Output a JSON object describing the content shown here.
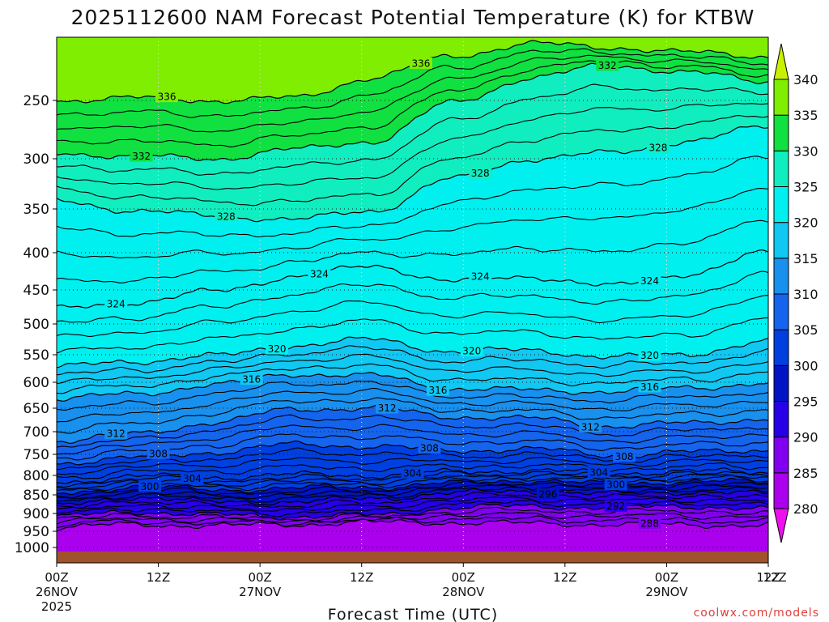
{
  "chart_data": {
    "type": "heatmap",
    "title": "2025112600 NAM Forecast Potential Temperature (K) for KTBW",
    "xlabel": "Forecast Time (UTC)",
    "ylabel": "",
    "credit": "coolwx.com/models",
    "y_ticks": [
      "250",
      "300",
      "350",
      "400",
      "450",
      "500",
      "550",
      "600",
      "650",
      "700",
      "750",
      "800",
      "850",
      "900",
      "950",
      "1000"
    ],
    "y_tick_values": [
      250,
      300,
      350,
      400,
      450,
      500,
      550,
      600,
      650,
      700,
      750,
      800,
      850,
      900,
      950,
      1000
    ],
    "ylim": [
      200,
      1000
    ],
    "x_ticks": [
      {
        "hour": 0,
        "time": "00Z",
        "date": "26NOV",
        "year": "2025"
      },
      {
        "hour": 12,
        "time": "12Z",
        "date": "",
        "year": ""
      },
      {
        "hour": 24,
        "time": "00Z",
        "date": "27NOV",
        "year": ""
      },
      {
        "hour": 36,
        "time": "12Z",
        "date": "",
        "year": ""
      },
      {
        "hour": 48,
        "time": "00Z",
        "date": "28NOV",
        "year": ""
      },
      {
        "hour": 60,
        "time": "12Z",
        "date": "",
        "year": ""
      },
      {
        "hour": 72,
        "time": "00Z",
        "date": "29NOV",
        "year": ""
      },
      {
        "hour": 84,
        "time": "12Z",
        "date": "",
        "year": ""
      }
    ],
    "xlim": [
      0,
      84
    ],
    "colorbar": {
      "levels": [
        280,
        285,
        290,
        295,
        300,
        305,
        310,
        315,
        320,
        325,
        330,
        335,
        340
      ],
      "labels": [
        "280",
        "285",
        "290",
        "295",
        "300",
        "305",
        "310",
        "315",
        "320",
        "325",
        "330",
        "335",
        "340"
      ],
      "colors": [
        "#ee11ee",
        "#aa00ee",
        "#8200f0",
        "#2600e6",
        "#0014c4",
        "#0040e0",
        "#1464ee",
        "#1890ee",
        "#10c8f2",
        "#00f0f0",
        "#10eec0",
        "#10e040",
        "#80ee00",
        "#c8f000"
      ]
    },
    "contour_levels": [
      {
        "value": 288,
        "label": "288",
        "p": [
          940,
          930,
          935,
          930,
          925,
          925,
          928,
          930,
          932,
          932
        ]
      },
      {
        "value": 292,
        "label": "292",
        "p": [
          910,
          895,
          905,
          908,
          905,
          885,
          880,
          885,
          880,
          890
        ]
      },
      {
        "value": 296,
        "label": "296",
        "p": [
          880,
          855,
          870,
          868,
          860,
          845,
          840,
          848,
          842,
          848
        ]
      },
      {
        "value": 300,
        "label": "300",
        "p": [
          848,
          828,
          838,
          832,
          830,
          820,
          812,
          822,
          815,
          818
        ]
      },
      {
        "value": 304,
        "label": "304",
        "p": [
          818,
          802,
          805,
          798,
          800,
          792,
          788,
          795,
          790,
          792
        ]
      },
      {
        "value": 308,
        "label": "308",
        "p": [
          770,
          758,
          745,
          728,
          732,
          742,
          738,
          752,
          745,
          740
        ]
      },
      {
        "value": 312,
        "label": "312",
        "p": [
          720,
          705,
          680,
          652,
          650,
          668,
          672,
          688,
          682,
          672
        ]
      },
      {
        "value": 316,
        "label": "316",
        "p": [
          632,
          622,
          605,
          585,
          588,
          612,
          615,
          618,
          610,
          602
        ]
      },
      {
        "value": 320,
        "label": "320",
        "p": [
          572,
          562,
          552,
          535,
          525,
          545,
          542,
          555,
          548,
          530
        ]
      },
      {
        "value": 324,
        "label": "324",
        "p": [
          478,
          468,
          452,
          432,
          418,
          438,
          432,
          445,
          428,
          400
        ]
      },
      {
        "value": 328,
        "label": "328",
        "p": [
          342,
          352,
          358,
          362,
          352,
          320,
          300,
          295,
          285,
          272
        ]
      },
      {
        "value": 332,
        "label": "332",
        "p": [
          295,
          298,
          300,
          292,
          285,
          252,
          232,
          222,
          228,
          235
        ]
      },
      {
        "value": 336,
        "label": "336",
        "p": [
          250,
          248,
          250,
          248,
          232,
          215,
          205,
          208,
          212,
          215
        ]
      }
    ],
    "contour_label_positions": [
      {
        "value": 288,
        "hour": 70
      },
      {
        "value": 292,
        "hour": 66
      },
      {
        "value": 296,
        "hour": 58
      },
      {
        "value": 300,
        "hour": 11
      },
      {
        "value": 300,
        "hour": 66
      },
      {
        "value": 304,
        "hour": 16
      },
      {
        "value": 304,
        "hour": 42
      },
      {
        "value": 304,
        "hour": 64
      },
      {
        "value": 308,
        "hour": 12
      },
      {
        "value": 308,
        "hour": 44
      },
      {
        "value": 308,
        "hour": 67
      },
      {
        "value": 312,
        "hour": 7
      },
      {
        "value": 312,
        "hour": 39
      },
      {
        "value": 312,
        "hour": 63
      },
      {
        "value": 316,
        "hour": 23
      },
      {
        "value": 316,
        "hour": 45
      },
      {
        "value": 316,
        "hour": 70
      },
      {
        "value": 320,
        "hour": 26
      },
      {
        "value": 320,
        "hour": 49
      },
      {
        "value": 320,
        "hour": 70
      },
      {
        "value": 324,
        "hour": 7
      },
      {
        "value": 324,
        "hour": 31
      },
      {
        "value": 324,
        "hour": 50
      },
      {
        "value": 324,
        "hour": 70
      },
      {
        "value": 328,
        "hour": 20
      },
      {
        "value": 328,
        "hour": 50
      },
      {
        "value": 332,
        "hour": 10
      },
      {
        "value": 332,
        "hour": 65
      },
      {
        "value": 336,
        "hour": 13
      },
      {
        "value": 336,
        "hour": 43
      },
      {
        "value": 328,
        "hour": 71
      }
    ],
    "grid": true,
    "ground_color": "#a0522d"
  }
}
